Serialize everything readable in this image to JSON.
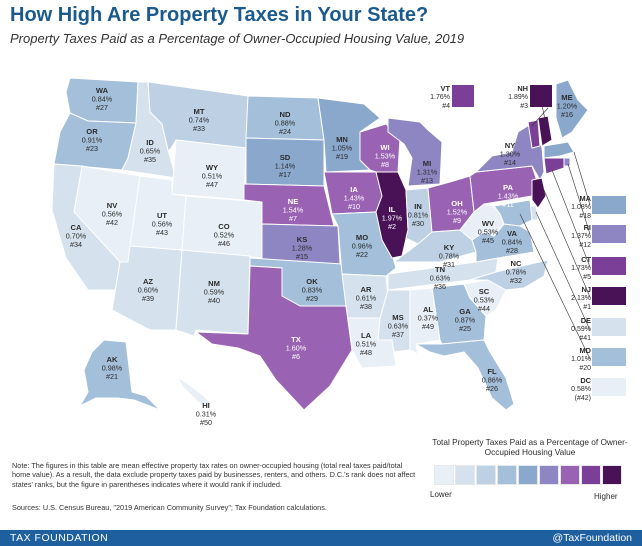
{
  "header": {
    "title": "How High Are Property Taxes in Your State?",
    "subtitle": "Property Taxes Paid as a Percentage of Owner-Occupied Housing Value, 2019"
  },
  "colors": {
    "c1": "#e9eff6",
    "c2": "#d5e2ee",
    "c3": "#bdd0e4",
    "c4": "#a3bfda",
    "c5": "#8aa7cc",
    "c6": "#8e86c2",
    "c7": "#9a62b3",
    "c8": "#7b3f98",
    "c9": "#4a1256",
    "brand": "#1e5fa0"
  },
  "states": {
    "WA": {
      "abbr": "WA",
      "rate": "0.84%",
      "rank": "#27",
      "level": "c4"
    },
    "OR": {
      "abbr": "OR",
      "rate": "0.91%",
      "rank": "#23",
      "level": "c4"
    },
    "ID": {
      "abbr": "ID",
      "rate": "0.65%",
      "rank": "#35",
      "level": "c2"
    },
    "MT": {
      "abbr": "MT",
      "rate": "0.74%",
      "rank": "#33",
      "level": "c3"
    },
    "WY": {
      "abbr": "WY",
      "rate": "0.51%",
      "rank": "#47",
      "level": "c1"
    },
    "NV": {
      "abbr": "NV",
      "rate": "0.56%",
      "rank": "#42",
      "level": "c1"
    },
    "UT": {
      "abbr": "UT",
      "rate": "0.56%",
      "rank": "#43",
      "level": "c1"
    },
    "CA": {
      "abbr": "CA",
      "rate": "0.70%",
      "rank": "#34",
      "level": "c2"
    },
    "AZ": {
      "abbr": "AZ",
      "rate": "0.60%",
      "rank": "#39",
      "level": "c2"
    },
    "CO": {
      "abbr": "CO",
      "rate": "0.52%",
      "rank": "#46",
      "level": "c1"
    },
    "NM": {
      "abbr": "NM",
      "rate": "0.59%",
      "rank": "#40",
      "level": "c2"
    },
    "ND": {
      "abbr": "ND",
      "rate": "0.88%",
      "rank": "#24",
      "level": "c4"
    },
    "SD": {
      "abbr": "SD",
      "rate": "1.14%",
      "rank": "#17",
      "level": "c5"
    },
    "NE": {
      "abbr": "NE",
      "rate": "1.54%",
      "rank": "#7",
      "level": "c7"
    },
    "KS": {
      "abbr": "KS",
      "rate": "1.28%",
      "rank": "#15",
      "level": "c6"
    },
    "OK": {
      "abbr": "OK",
      "rate": "0.83%",
      "rank": "#29",
      "level": "c4"
    },
    "TX": {
      "abbr": "TX",
      "rate": "1.60%",
      "rank": "#6",
      "level": "c7"
    },
    "MN": {
      "abbr": "MN",
      "rate": "1.05%",
      "rank": "#19",
      "level": "c5"
    },
    "IA": {
      "abbr": "IA",
      "rate": "1.43%",
      "rank": "#10",
      "level": "c7"
    },
    "MO": {
      "abbr": "MO",
      "rate": "0.96%",
      "rank": "#22",
      "level": "c4"
    },
    "AR": {
      "abbr": "AR",
      "rate": "0.61%",
      "rank": "#38",
      "level": "c2"
    },
    "LA": {
      "abbr": "LA",
      "rate": "0.51%",
      "rank": "#48",
      "level": "c1"
    },
    "WI": {
      "abbr": "WI",
      "rate": "1.53%",
      "rank": "#8",
      "level": "c7"
    },
    "IL": {
      "abbr": "IL",
      "rate": "1.97%",
      "rank": "#2",
      "level": "c9"
    },
    "MI": {
      "abbr": "MI",
      "rate": "1.31%",
      "rank": "#13",
      "level": "c6"
    },
    "IN": {
      "abbr": "IN",
      "rate": "0.81%",
      "rank": "#30",
      "level": "c3"
    },
    "OH": {
      "abbr": "OH",
      "rate": "1.52%",
      "rank": "#9",
      "level": "c7"
    },
    "KY": {
      "abbr": "KY",
      "rate": "0.78%",
      "rank": "#31",
      "level": "c3"
    },
    "TN": {
      "abbr": "TN",
      "rate": "0.63%",
      "rank": "#36",
      "level": "c2"
    },
    "MS": {
      "abbr": "MS",
      "rate": "0.63%",
      "rank": "#37",
      "level": "c2"
    },
    "AL": {
      "abbr": "AL",
      "rate": "0.37%",
      "rank": "#49",
      "level": "c1"
    },
    "GA": {
      "abbr": "GA",
      "rate": "0.87%",
      "rank": "#25",
      "level": "c4"
    },
    "FL": {
      "abbr": "FL",
      "rate": "0.86%",
      "rank": "#26",
      "level": "c4"
    },
    "SC": {
      "abbr": "SC",
      "rate": "0.53%",
      "rank": "#44",
      "level": "c1"
    },
    "NC": {
      "abbr": "NC",
      "rate": "0.78%",
      "rank": "#32",
      "level": "c3"
    },
    "VA": {
      "abbr": "VA",
      "rate": "0.84%",
      "rank": "#28",
      "level": "c4"
    },
    "WV": {
      "abbr": "WV",
      "rate": "0.53%",
      "rank": "#45",
      "level": "c1"
    },
    "PA": {
      "abbr": "PA",
      "rate": "1.43%",
      "rank": "#11",
      "level": "c7"
    },
    "NY": {
      "abbr": "NY",
      "rate": "1.30%",
      "rank": "#14",
      "level": "c6"
    },
    "ME": {
      "abbr": "ME",
      "rate": "1.20%",
      "rank": "#16",
      "level": "c5"
    },
    "AK": {
      "abbr": "AK",
      "rate": "0.98%",
      "rank": "#21",
      "level": "c4"
    },
    "HI": {
      "abbr": "HI",
      "rate": "0.31%",
      "rank": "#50",
      "level": "c1"
    }
  },
  "callouts": {
    "VT": {
      "abbr": "VT",
      "rate": "1.76%",
      "rank": "#4",
      "level": "c8"
    },
    "NH": {
      "abbr": "NH",
      "rate": "1.89%",
      "rank": "#3",
      "level": "c9"
    }
  },
  "sidebar": [
    {
      "abbr": "MA",
      "rate": "1.08%",
      "rank": "#18",
      "level": "c5"
    },
    {
      "abbr": "RI",
      "rate": "1.37%",
      "rank": "#12",
      "level": "c6"
    },
    {
      "abbr": "CT",
      "rate": "1.73%",
      "rank": "#5",
      "level": "c8"
    },
    {
      "abbr": "NJ",
      "rate": "2.13%",
      "rank": "#1",
      "level": "c9"
    },
    {
      "abbr": "DE",
      "rate": "0.59%",
      "rank": "#41",
      "level": "c2"
    },
    {
      "abbr": "MD",
      "rate": "1.01%",
      "rank": "#20",
      "level": "c4"
    },
    {
      "abbr": "DC",
      "rate": "0.58%",
      "rank": "(#42)",
      "level": "c1"
    }
  ],
  "legend": {
    "title": "Total Property Taxes Paid as a Percentage of Owner-Occupied Housing Value",
    "lower": "Lower",
    "higher": "Higher",
    "steps": [
      "c1",
      "c2",
      "c3",
      "c4",
      "c5",
      "c6",
      "c7",
      "c8",
      "c9"
    ]
  },
  "notes": {
    "note": "Note: The figures in this table are mean effective property tax rates on owner-occupied housing (total real taxes paid/total home value). As a result, the data exclude property taxes paid by businesses, renters, and others. D.C.'s rank does not affect states' ranks, but the figure in parentheses indicates where it would rank if included.",
    "sources": "Sources: U.S. Census Bureau, \"2019 American Community Survey\"; Tax Foundation calculations."
  },
  "footer": {
    "org": "TAX FOUNDATION",
    "handle": "@TaxFoundation"
  }
}
